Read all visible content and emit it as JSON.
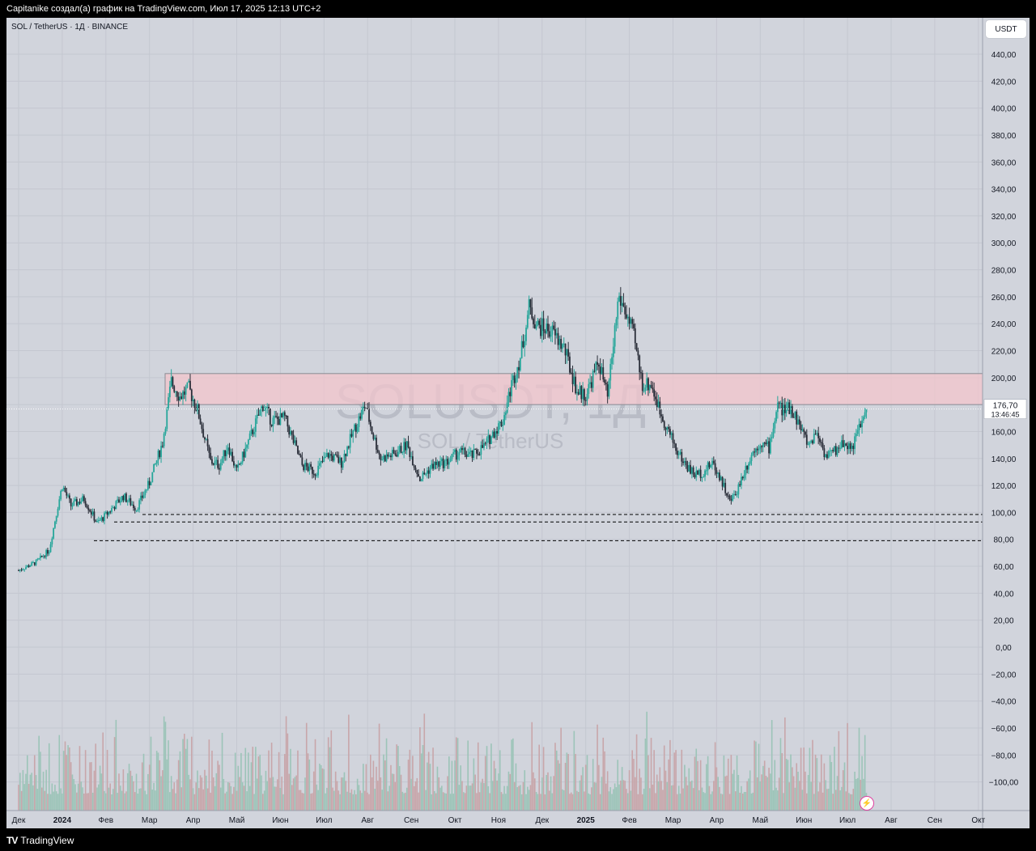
{
  "header": {
    "caption": "Capitanike создал(а) график на TradingView.com, Июл 17, 2025 12:13 UTC+2"
  },
  "symbol": {
    "label": "SOL / TetherUS · 1Д · BINANCE"
  },
  "currency": {
    "label": "USDT"
  },
  "watermark": {
    "line1": "SOLUSDT, 1Д",
    "line2": "SOL / TetherUS"
  },
  "footer": {
    "brand": "TradingView",
    "brand_icon": "tradingview-logo-icon"
  },
  "flash_icon": "lightning-icon",
  "colors": {
    "up": "#26a69a",
    "down": "#2a2e39",
    "zone": "#f3c6cc",
    "vol_up": "#9cc4b8",
    "vol_down": "#c8a6aa",
    "bg": "#d1d4dc"
  },
  "chart_data": {
    "type": "candlestick",
    "ylim": [
      -110,
      450
    ],
    "y_ticks": [
      "440,00",
      "420,00",
      "400,00",
      "380,00",
      "360,00",
      "340,00",
      "320,00",
      "300,00",
      "280,00",
      "260,00",
      "240,00",
      "220,00",
      "200,00",
      "180,00",
      "160,00",
      "140,00",
      "120,00",
      "100,00",
      "80,00",
      "60,00",
      "40,00",
      "20,00",
      "0,00",
      "−20,00",
      "−40,00",
      "−60,00",
      "−80,00",
      "−100,00"
    ],
    "x_ticks": [
      "Дек",
      "2024",
      "Фев",
      "Мар",
      "Апр",
      "Май",
      "Июн",
      "Июл",
      "Авг",
      "Сен",
      "Окт",
      "Ноя",
      "Дек",
      "2025",
      "Фев",
      "Мар",
      "Апр",
      "Май",
      "Июн",
      "Июл",
      "Авг",
      "Сен",
      "Окт"
    ],
    "x_ticks_bold": [
      "2024",
      "2025"
    ],
    "last_price": {
      "value": "176,70",
      "countdown": "13:46:45"
    },
    "resistance_zone": {
      "low": 180,
      "high": 203
    },
    "levels": [
      {
        "label": "98,48",
        "value": 98.48
      },
      {
        "label": "92,88",
        "value": 92.88
      },
      {
        "label": "79,00",
        "value": 79.0
      }
    ],
    "close_path": [
      {
        "m": 0.0,
        "p": 57
      },
      {
        "m": 0.4,
        "p": 63
      },
      {
        "m": 0.7,
        "p": 72
      },
      {
        "m": 0.9,
        "p": 105
      },
      {
        "m": 1.0,
        "p": 120
      },
      {
        "m": 1.2,
        "p": 105
      },
      {
        "m": 1.5,
        "p": 110
      },
      {
        "m": 1.8,
        "p": 92
      },
      {
        "m": 2.0,
        "p": 98
      },
      {
        "m": 2.4,
        "p": 112
      },
      {
        "m": 2.7,
        "p": 103
      },
      {
        "m": 3.0,
        "p": 122
      },
      {
        "m": 3.3,
        "p": 152
      },
      {
        "m": 3.5,
        "p": 197
      },
      {
        "m": 3.7,
        "p": 186
      },
      {
        "m": 3.9,
        "p": 192
      },
      {
        "m": 4.1,
        "p": 176
      },
      {
        "m": 4.4,
        "p": 138
      },
      {
        "m": 4.6,
        "p": 135
      },
      {
        "m": 4.8,
        "p": 150
      },
      {
        "m": 5.0,
        "p": 130
      },
      {
        "m": 5.3,
        "p": 155
      },
      {
        "m": 5.6,
        "p": 180
      },
      {
        "m": 5.8,
        "p": 168
      },
      {
        "m": 6.1,
        "p": 170
      },
      {
        "m": 6.5,
        "p": 135
      },
      {
        "m": 6.8,
        "p": 130
      },
      {
        "m": 7.1,
        "p": 143
      },
      {
        "m": 7.4,
        "p": 137
      },
      {
        "m": 7.7,
        "p": 162
      },
      {
        "m": 7.95,
        "p": 180
      },
      {
        "m": 8.1,
        "p": 160
      },
      {
        "m": 8.3,
        "p": 140
      },
      {
        "m": 8.6,
        "p": 143
      },
      {
        "m": 8.9,
        "p": 150
      },
      {
        "m": 9.2,
        "p": 125
      },
      {
        "m": 9.5,
        "p": 135
      },
      {
        "m": 9.8,
        "p": 137
      },
      {
        "m": 10.1,
        "p": 145
      },
      {
        "m": 10.4,
        "p": 142
      },
      {
        "m": 10.7,
        "p": 150
      },
      {
        "m": 10.9,
        "p": 160
      },
      {
        "m": 11.1,
        "p": 168
      },
      {
        "m": 11.3,
        "p": 195
      },
      {
        "m": 11.5,
        "p": 215
      },
      {
        "m": 11.7,
        "p": 252
      },
      {
        "m": 11.9,
        "p": 238
      },
      {
        "m": 12.2,
        "p": 235
      },
      {
        "m": 12.5,
        "p": 222
      },
      {
        "m": 12.8,
        "p": 190
      },
      {
        "m": 13.0,
        "p": 187
      },
      {
        "m": 13.3,
        "p": 212
      },
      {
        "m": 13.5,
        "p": 185
      },
      {
        "m": 13.75,
        "p": 260
      },
      {
        "m": 13.9,
        "p": 250
      },
      {
        "m": 14.1,
        "p": 230
      },
      {
        "m": 14.3,
        "p": 195
      },
      {
        "m": 14.5,
        "p": 195
      },
      {
        "m": 14.7,
        "p": 175
      },
      {
        "m": 14.9,
        "p": 160
      },
      {
        "m": 15.1,
        "p": 145
      },
      {
        "m": 15.3,
        "p": 135
      },
      {
        "m": 15.5,
        "p": 128
      },
      {
        "m": 15.7,
        "p": 130
      },
      {
        "m": 15.9,
        "p": 137
      },
      {
        "m": 16.1,
        "p": 125
      },
      {
        "m": 16.3,
        "p": 108
      },
      {
        "m": 16.45,
        "p": 115
      },
      {
        "m": 16.6,
        "p": 128
      },
      {
        "m": 16.8,
        "p": 143
      },
      {
        "m": 17.0,
        "p": 152
      },
      {
        "m": 17.2,
        "p": 148
      },
      {
        "m": 17.4,
        "p": 180
      },
      {
        "m": 17.55,
        "p": 175
      },
      {
        "m": 17.7,
        "p": 178
      },
      {
        "m": 17.9,
        "p": 165
      },
      {
        "m": 18.1,
        "p": 150
      },
      {
        "m": 18.3,
        "p": 160
      },
      {
        "m": 18.5,
        "p": 142
      },
      {
        "m": 18.7,
        "p": 145
      },
      {
        "m": 18.9,
        "p": 152
      },
      {
        "m": 19.1,
        "p": 148
      },
      {
        "m": 19.3,
        "p": 165
      },
      {
        "m": 19.45,
        "p": 176.7
      }
    ]
  }
}
